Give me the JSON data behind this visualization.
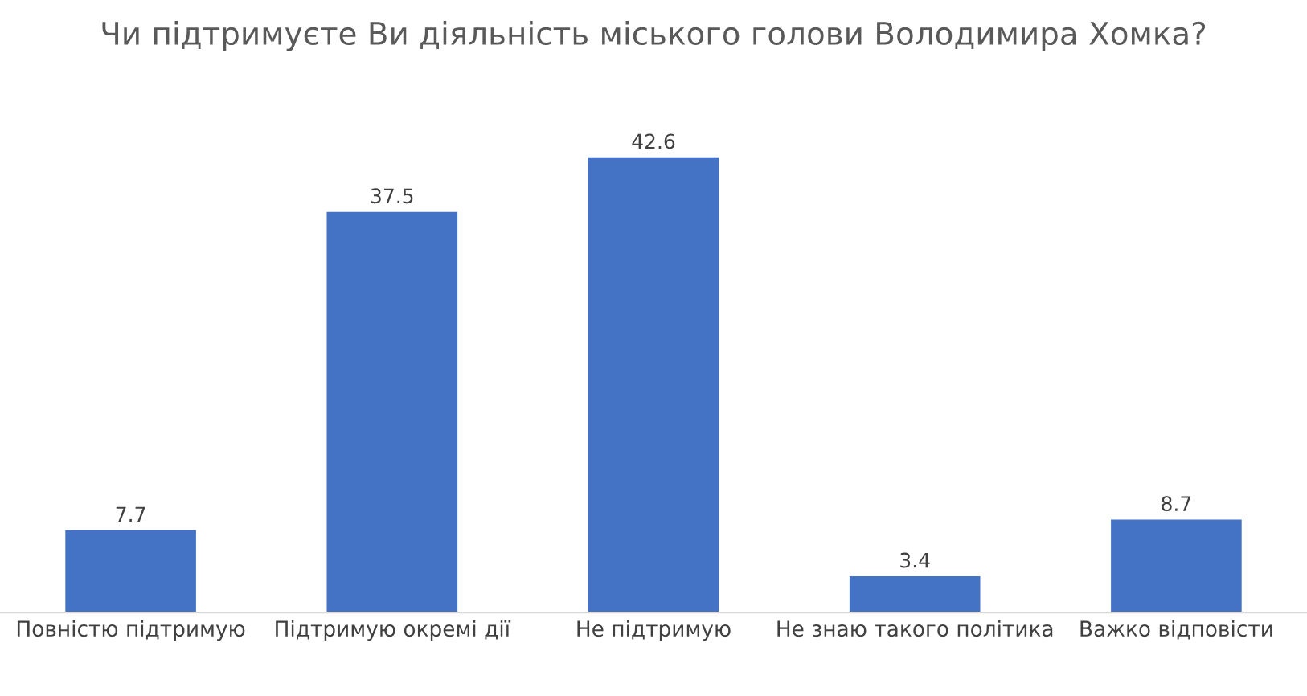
{
  "chart_data": {
    "type": "bar",
    "title": "Чи підтримуєте Ви діяльність міського голови Володимира Хомка?",
    "categories": [
      "Повністю підтримую",
      "Підтримую окремі дії",
      "Не підтримую",
      "Не знаю такого політика",
      "Важко відповісти"
    ],
    "values": [
      7.7,
      37.5,
      42.6,
      3.4,
      8.7
    ],
    "color": "#4472c4",
    "data_labels": true,
    "grid": false,
    "legend": false
  }
}
